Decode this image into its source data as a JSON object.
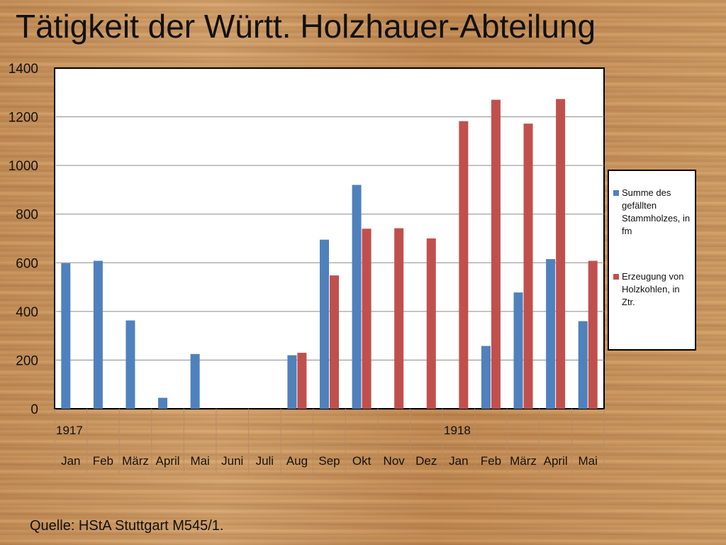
{
  "title": "Tätigkeit der Württ. Holzhauer-Abteilung",
  "source": "Quelle: HStA Stuttgart M545/1.",
  "colors": {
    "series1": "#4f81bd",
    "series2": "#c0504d"
  },
  "chart_data": {
    "type": "bar",
    "title": "Tätigkeit der Württ. Holzhauer-Abteilung",
    "ylim": [
      0,
      1400
    ],
    "yticks": [
      0,
      200,
      400,
      600,
      800,
      1000,
      1200,
      1400
    ],
    "grid": true,
    "legend_position": "right",
    "categories": [
      "Jan",
      "Feb",
      "März",
      "April",
      "Mai",
      "Juni",
      "Juli",
      "Aug",
      "Sep",
      "Okt",
      "Nov",
      "Dez",
      "Jan",
      "Feb",
      "März",
      "April",
      "Mai"
    ],
    "year_labels": [
      {
        "label": "1917",
        "start_index": 0
      },
      {
        "label": "1918",
        "start_index": 12
      }
    ],
    "series": [
      {
        "name": "Summe des gefällten Stammholzes, in fm",
        "values": [
          598,
          608,
          363,
          45,
          225,
          0,
          0,
          220,
          695,
          920,
          0,
          0,
          0,
          258,
          478,
          615,
          360
        ]
      },
      {
        "name": "Erzeugung von Holzkohlen, in Ztr.",
        "values": [
          0,
          0,
          0,
          0,
          0,
          0,
          0,
          230,
          548,
          740,
          742,
          700,
          1182,
          1270,
          1172,
          1273,
          608
        ]
      }
    ]
  }
}
